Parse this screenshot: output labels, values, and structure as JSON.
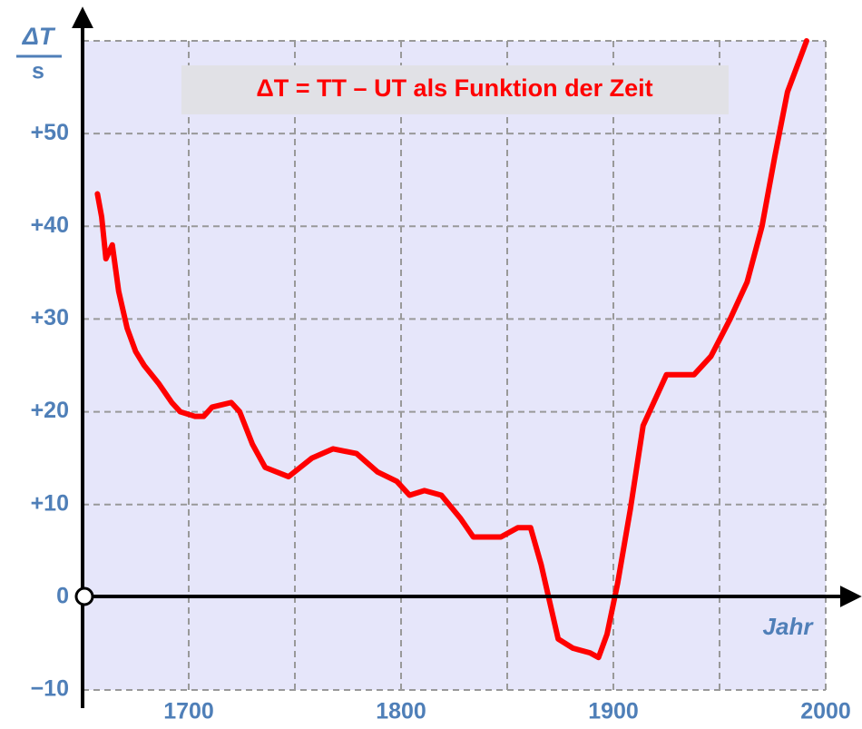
{
  "chart_data": {
    "type": "line",
    "title": "ΔT = TT – UT als Funktion der Zeit",
    "y_label_top": "ΔT",
    "y_label_bottom": "s",
    "x_label": "Jahr",
    "x": [
      1657,
      1659,
      1661,
      1664,
      1667,
      1671,
      1675,
      1679,
      1686,
      1692,
      1696,
      1703,
      1707,
      1711,
      1720,
      1724,
      1730,
      1736,
      1747,
      1758,
      1768,
      1779,
      1789,
      1798,
      1804,
      1811,
      1819,
      1828,
      1834,
      1847,
      1855,
      1861,
      1866,
      1870,
      1874,
      1881,
      1889,
      1893,
      1897,
      1902,
      1908,
      1914,
      1919,
      1925,
      1931,
      1938,
      1946,
      1955,
      1963,
      1970,
      1976,
      1982,
      1991
    ],
    "series": [
      {
        "name": "ΔT",
        "color": "#ff0000",
        "values": [
          43.5,
          41,
          36.5,
          38,
          33,
          29,
          26.5,
          25,
          23,
          21,
          20,
          19.5,
          19.5,
          20.5,
          21,
          20,
          16.5,
          14,
          13,
          15,
          16,
          15.5,
          13.5,
          12.5,
          11,
          11.5,
          11,
          8.5,
          6.5,
          6.5,
          7.5,
          7.5,
          3.5,
          -0.5,
          -4.5,
          -5.5,
          -6,
          -6.5,
          -4,
          1.5,
          9.5,
          18.5,
          21,
          24,
          24,
          24,
          26,
          30,
          34,
          40,
          47.5,
          54.5,
          60
        ]
      }
    ],
    "xlim": [
      1650,
      2000
    ],
    "ylim": [
      -10,
      60
    ],
    "xticks": [
      1700,
      1800,
      1900,
      2000
    ],
    "xgrid": [
      1650,
      1700,
      1750,
      1800,
      1850,
      1900,
      1950,
      2000
    ],
    "yticks": [
      {
        "value": -10,
        "label": "−10"
      },
      0,
      {
        "value": 10,
        "label": "+10"
      },
      {
        "value": 20,
        "label": "+20"
      },
      {
        "value": 30,
        "label": "+30"
      },
      {
        "value": 40,
        "label": "+40"
      },
      {
        "value": 50,
        "label": "+50"
      }
    ],
    "ygrid": [
      -10,
      0,
      10,
      20,
      30,
      40,
      50,
      60
    ],
    "grid": true
  }
}
